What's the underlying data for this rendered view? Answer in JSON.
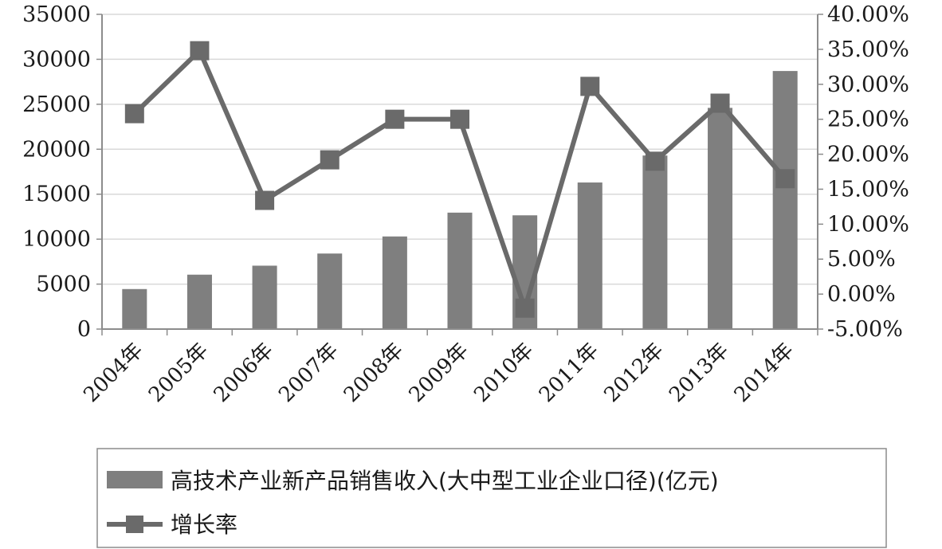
{
  "chart_data": {
    "type": "bar",
    "categories": [
      "2004年",
      "2005年",
      "2006年",
      "2007年",
      "2008年",
      "2009年",
      "2010年",
      "2011年",
      "2012年",
      "2013年",
      "2014年"
    ],
    "series": [
      {
        "name": "高技术产业新产品销售收入(大中型工业企业口径)(亿元)",
        "type": "bar",
        "axis": "left",
        "values": [
          4450,
          6050,
          7050,
          8400,
          10300,
          12950,
          12650,
          16300,
          19300,
          24600,
          28700
        ]
      },
      {
        "name": "增长率",
        "type": "line",
        "axis": "right",
        "values": [
          25.8,
          34.8,
          13.4,
          19.2,
          25.0,
          25.0,
          -2.0,
          29.7,
          19.0,
          27.3,
          16.5
        ]
      }
    ],
    "y_left": {
      "min": 0,
      "max": 35000,
      "step": 5000,
      "ticks": [
        "0",
        "5000",
        "10000",
        "15000",
        "20000",
        "25000",
        "30000",
        "35000"
      ]
    },
    "y_right": {
      "min": -5,
      "max": 40,
      "step": 5,
      "ticks": [
        "-5.00%",
        "0.00%",
        "5.00%",
        "10.00%",
        "15.00%",
        "20.00%",
        "25.00%",
        "30.00%",
        "35.00%",
        "40.00%"
      ]
    },
    "grid": "horizontal",
    "legend_position": "bottom",
    "colors": {
      "bar": "#7f7f7f",
      "line": "#6a6a6a",
      "grid": "#d9d9d9",
      "axis": "#8c8c8c"
    }
  }
}
